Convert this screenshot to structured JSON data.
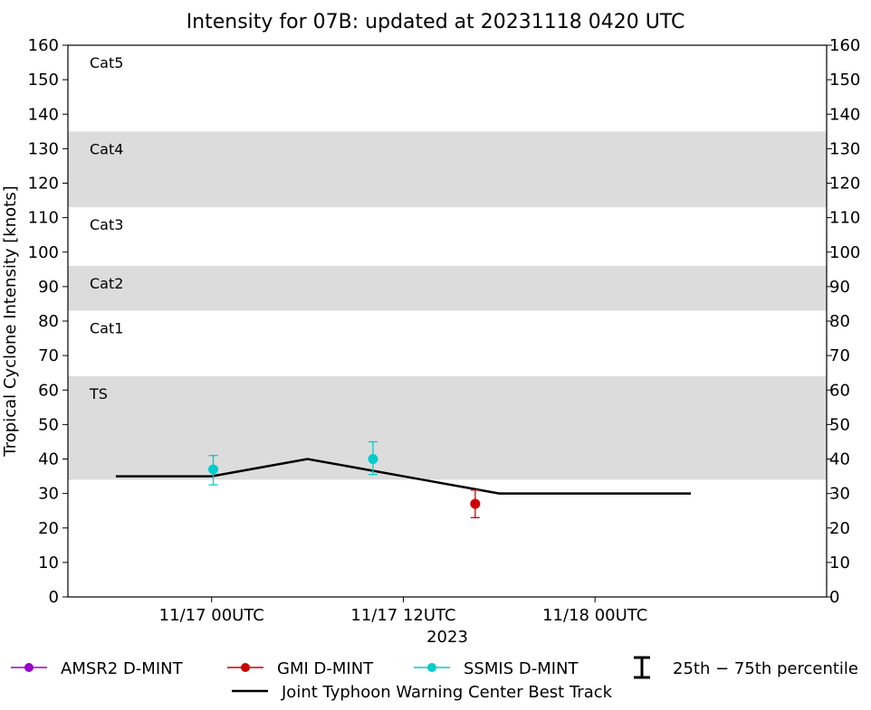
{
  "chart_data": {
    "type": "line",
    "title": "Intensity for 07B: updated at 20231118 0420 UTC",
    "ylabel": "Tropical Cyclone Intensity [knots]",
    "xlabel": "2023",
    "ylim": [
      0,
      160
    ],
    "yticks": [
      0,
      10,
      20,
      30,
      40,
      50,
      60,
      70,
      80,
      90,
      100,
      110,
      120,
      130,
      140,
      150,
      160
    ],
    "xlim_hours": [
      -9,
      38.5
    ],
    "xticks": [
      {
        "hour": 0,
        "label": "11/17 00UTC"
      },
      {
        "hour": 12,
        "label": "11/17 12UTC"
      },
      {
        "hour": 24,
        "label": "11/18 00UTC"
      }
    ],
    "category_bands": [
      {
        "name": "TS",
        "min": 34,
        "max": 64,
        "shaded": true
      },
      {
        "name": "Cat1",
        "min": 64,
        "max": 83,
        "shaded": false
      },
      {
        "name": "Cat2",
        "min": 83,
        "max": 96,
        "shaded": true
      },
      {
        "name": "Cat3",
        "min": 96,
        "max": 113,
        "shaded": false
      },
      {
        "name": "Cat4",
        "min": 113,
        "max": 135,
        "shaded": true
      },
      {
        "name": "Cat5",
        "min": 135,
        "max": 160,
        "shaded": false
      }
    ],
    "series": [
      {
        "name": "Joint Typhoon Warning Center Best Track",
        "kind": "line",
        "color": "#000000",
        "points": [
          {
            "x": -6,
            "y": 35
          },
          {
            "x": 0,
            "y": 35
          },
          {
            "x": 6,
            "y": 40
          },
          {
            "x": 12,
            "y": 35
          },
          {
            "x": 18,
            "y": 30
          },
          {
            "x": 30,
            "y": 30
          }
        ]
      },
      {
        "name": "SSMIS D-MINT",
        "kind": "points",
        "color": "#00cccc",
        "points": [
          {
            "x": 0.1,
            "y": 37,
            "low": 32.5,
            "high": 41
          },
          {
            "x": 10.1,
            "y": 40,
            "low": 35.5,
            "high": 45
          }
        ]
      },
      {
        "name": "GMI D-MINT",
        "kind": "points",
        "color": "#cc0000",
        "points": [
          {
            "x": 16.5,
            "y": 27,
            "low": 23,
            "high": 31
          }
        ]
      },
      {
        "name": "AMSR2 D-MINT",
        "kind": "points",
        "color": "#9900cc",
        "points": []
      }
    ],
    "legend": {
      "placement": "bottom",
      "entries": [
        {
          "label": "AMSR2 D-MINT",
          "color": "#9900cc",
          "kind": "marker"
        },
        {
          "label": "GMI D-MINT",
          "color": "#cc0000",
          "kind": "marker"
        },
        {
          "label": "SSMIS D-MINT",
          "color": "#00cccc",
          "kind": "marker"
        },
        {
          "label": "25th − 75th percentile",
          "color": "#000000",
          "kind": "errorbar"
        },
        {
          "label": "Joint Typhoon Warning Center Best Track",
          "color": "#000000",
          "kind": "line"
        }
      ]
    },
    "band_color": "#dcdcdc"
  }
}
